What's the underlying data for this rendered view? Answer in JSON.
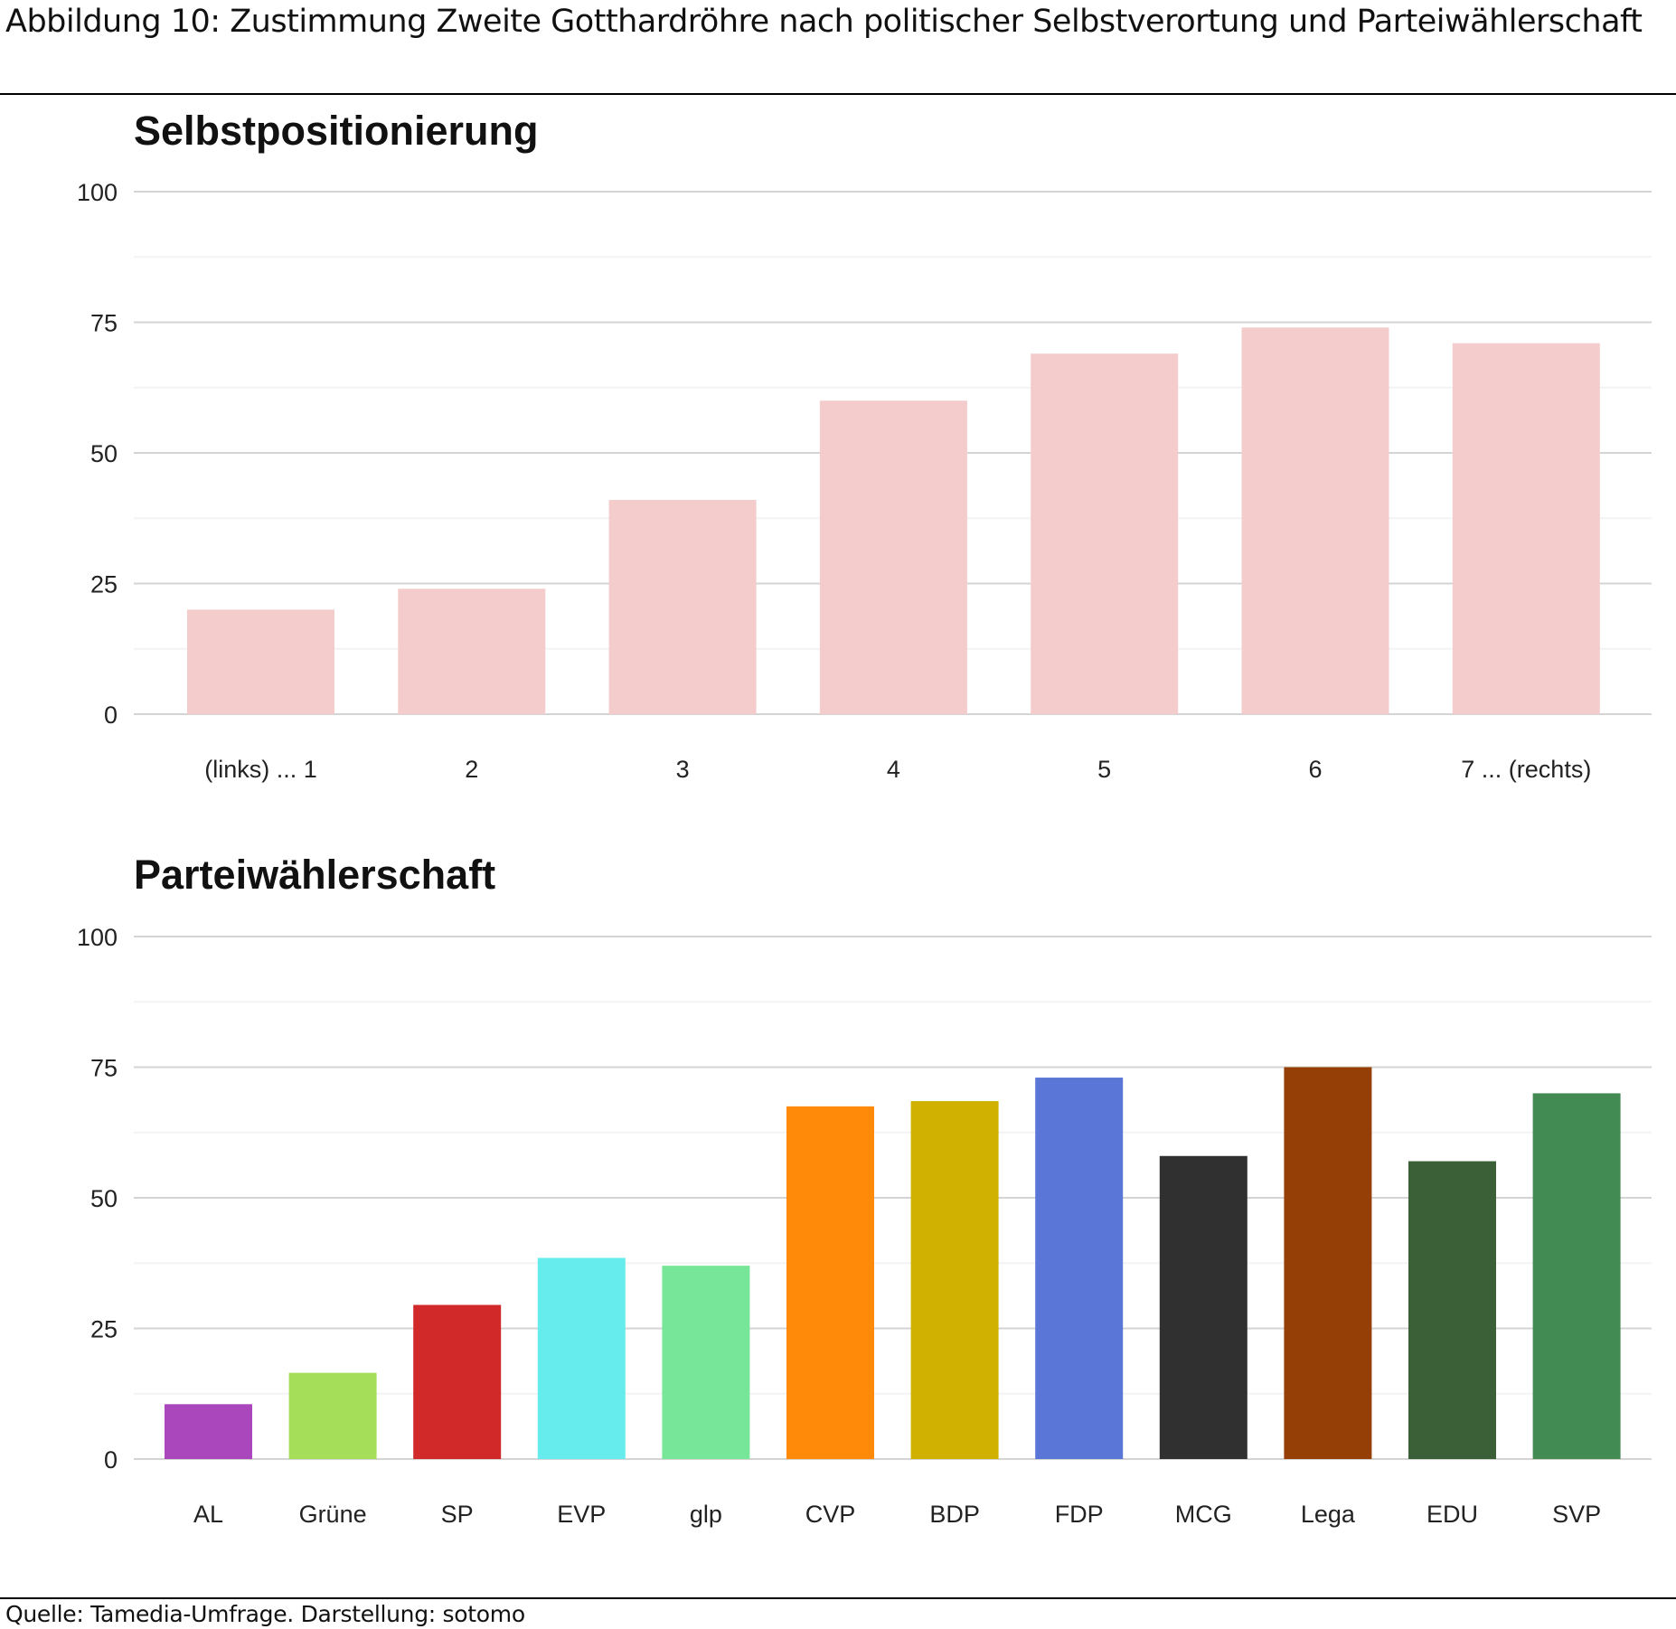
{
  "title": "Abbildung 10: Zustimmung Zweite Gotthardröhre nach politischer Selbstverortung und Parteiwählerschaft",
  "source": "Quelle: Tamedia-Umfrage. Darstellung: sotomo",
  "chart_data": [
    {
      "type": "bar",
      "title": "Selbstpositionierung",
      "categories": [
        "(links) ... 1",
        "2",
        "3",
        "4",
        "5",
        "6",
        "7 ... (rechts)"
      ],
      "values": [
        20,
        24,
        41,
        60,
        69,
        74,
        71
      ],
      "colors": [
        "#f4cccc",
        "#f4cccc",
        "#f4cccc",
        "#f4cccc",
        "#f4cccc",
        "#f4cccc",
        "#f4cccc"
      ],
      "ylim": [
        0,
        100
      ],
      "yticks": [
        "0",
        "25",
        "50",
        "75",
        "100"
      ],
      "grid": true
    },
    {
      "type": "bar",
      "title": "Parteiwählerschaft",
      "categories": [
        "AL",
        "Grüne",
        "SP",
        "EVP",
        "glp",
        "CVP",
        "BDP",
        "FDP",
        "MCG",
        "Lega",
        "EDU",
        "SVP"
      ],
      "values": [
        10.5,
        16.5,
        29.5,
        38.5,
        37,
        67.5,
        68.5,
        73,
        58,
        75,
        57,
        70
      ],
      "colors": [
        "#ab47bc",
        "#a5de58",
        "#d1292a",
        "#66eced",
        "#78e698",
        "#ff8a0a",
        "#d0b000",
        "#5a77d8",
        "#303030",
        "#953f06",
        "#3b5f37",
        "#428b53"
      ],
      "ylim": [
        0,
        100
      ],
      "yticks": [
        "0",
        "25",
        "50",
        "75",
        "100"
      ],
      "grid": true
    }
  ]
}
